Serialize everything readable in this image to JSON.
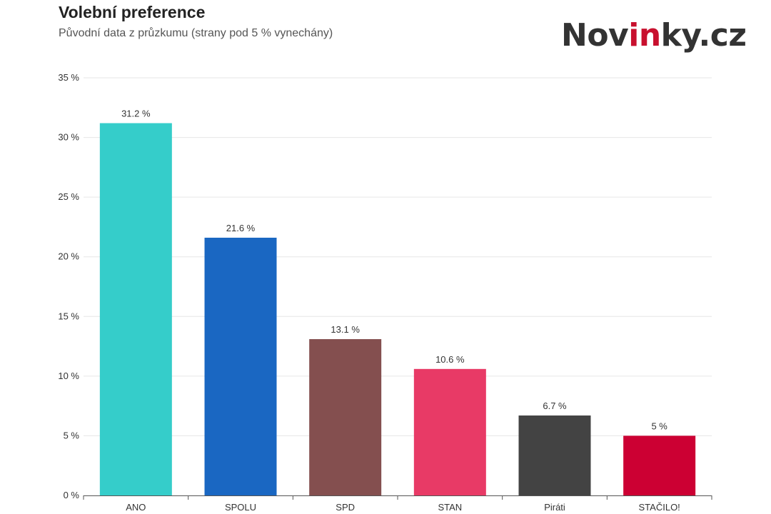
{
  "header": {
    "title": "Volební preference",
    "subtitle": "Původní data z průzkumu (strany pod 5 % vynechány)"
  },
  "logo": {
    "prefix": "Nov",
    "accent": "in",
    "suffix": "ky.cz",
    "accent_color": "#c8102e"
  },
  "chart_data": {
    "type": "bar",
    "title": "Volební preference",
    "subtitle": "Původní data z průzkumu (strany pod 5 % vynechány)",
    "xlabel": "",
    "ylabel": "",
    "ylim": [
      0,
      35
    ],
    "yticks": [
      0,
      5,
      10,
      15,
      20,
      25,
      30,
      35
    ],
    "ytick_labels": [
      "0 %",
      "5 %",
      "10 %",
      "15 %",
      "20 %",
      "25 %",
      "30 %",
      "35 %"
    ],
    "grid": true,
    "legend": "none",
    "categories": [
      "ANO",
      "SPOLU",
      "SPD",
      "STAN",
      "Piráti",
      "STAČILO!"
    ],
    "values": [
      31.2,
      21.6,
      13.1,
      10.6,
      6.7,
      5
    ],
    "value_labels": [
      "31.2 %",
      "21.6 %",
      "13.1 %",
      "10.6 %",
      "6.7 %",
      "5 %"
    ],
    "colors": [
      "#35cdca",
      "#1a67c2",
      "#844f4f",
      "#e83a66",
      "#434343",
      "#cc0033"
    ]
  }
}
